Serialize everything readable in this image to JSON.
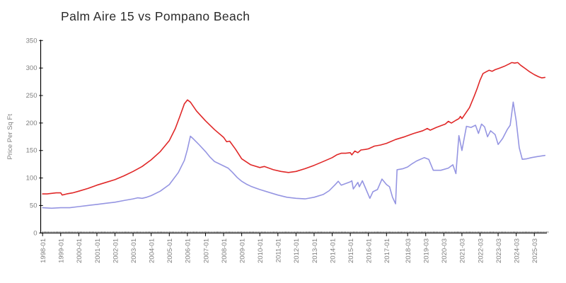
{
  "header": {
    "title": "Palm Aire 15 vs Pompano Beach"
  },
  "chart_data": {
    "type": "line",
    "title": "Palm Aire 15 vs Pompano Beach",
    "xlabel": "",
    "ylabel": "Price Per Sq Ft",
    "ylim": [
      0,
      350
    ],
    "y_ticks": [
      0,
      50,
      100,
      150,
      200,
      250,
      300,
      350
    ],
    "grid": false,
    "legend": "none",
    "x_unit": "month_index (0 = 1998-01, monthly steps)",
    "x_range_months": [
      0,
      335
    ],
    "x_tick_labels": [
      {
        "label": "1998-01",
        "m": 0
      },
      {
        "label": "1999-01",
        "m": 12
      },
      {
        "label": "2000-01",
        "m": 24
      },
      {
        "label": "2001-01",
        "m": 36
      },
      {
        "label": "2002-01",
        "m": 48
      },
      {
        "label": "2003-01",
        "m": 60
      },
      {
        "label": "2004-01",
        "m": 72
      },
      {
        "label": "2005-01",
        "m": 84
      },
      {
        "label": "2006-01",
        "m": 96
      },
      {
        "label": "2007-01",
        "m": 108
      },
      {
        "label": "2008-01",
        "m": 120
      },
      {
        "label": "2009-01",
        "m": 132
      },
      {
        "label": "2010-01",
        "m": 144
      },
      {
        "label": "2011-01",
        "m": 156
      },
      {
        "label": "2012-01",
        "m": 168
      },
      {
        "label": "2013-01",
        "m": 180
      },
      {
        "label": "2014-01",
        "m": 192
      },
      {
        "label": "2015-01",
        "m": 204
      },
      {
        "label": "2016-01",
        "m": 216
      },
      {
        "label": "2017-01",
        "m": 228
      },
      {
        "label": "2018-03",
        "m": 242
      },
      {
        "label": "2019-03",
        "m": 254
      },
      {
        "label": "2020-03",
        "m": 266
      },
      {
        "label": "2021-03",
        "m": 278
      },
      {
        "label": "2022-03",
        "m": 290
      },
      {
        "label": "2023-03",
        "m": 302
      },
      {
        "label": "2024-03",
        "m": 314
      },
      {
        "label": "2025-03",
        "m": 326
      }
    ],
    "series": [
      {
        "name": "red-series",
        "color": "#e02828",
        "points": [
          [
            0,
            71
          ],
          [
            3,
            71
          ],
          [
            6,
            72
          ],
          [
            9,
            73
          ],
          [
            12,
            73
          ],
          [
            13,
            69
          ],
          [
            16,
            71
          ],
          [
            20,
            73
          ],
          [
            24,
            76
          ],
          [
            30,
            81
          ],
          [
            36,
            87
          ],
          [
            42,
            92
          ],
          [
            48,
            97
          ],
          [
            54,
            104
          ],
          [
            60,
            112
          ],
          [
            66,
            121
          ],
          [
            72,
            133
          ],
          [
            78,
            148
          ],
          [
            84,
            168
          ],
          [
            88,
            190
          ],
          [
            91,
            212
          ],
          [
            94,
            235
          ],
          [
            96,
            242
          ],
          [
            98,
            238
          ],
          [
            102,
            222
          ],
          [
            108,
            204
          ],
          [
            114,
            188
          ],
          [
            120,
            174
          ],
          [
            122,
            166
          ],
          [
            124,
            167
          ],
          [
            128,
            152
          ],
          [
            132,
            135
          ],
          [
            138,
            124
          ],
          [
            144,
            119
          ],
          [
            147,
            121
          ],
          [
            153,
            115
          ],
          [
            158,
            112
          ],
          [
            163,
            110
          ],
          [
            168,
            112
          ],
          [
            174,
            117
          ],
          [
            180,
            123
          ],
          [
            186,
            130
          ],
          [
            192,
            137
          ],
          [
            195,
            142
          ],
          [
            198,
            145
          ],
          [
            201,
            145
          ],
          [
            204,
            146
          ],
          [
            205,
            142
          ],
          [
            207,
            149
          ],
          [
            209,
            146
          ],
          [
            211,
            151
          ],
          [
            214,
            152
          ],
          [
            216,
            153
          ],
          [
            220,
            158
          ],
          [
            224,
            160
          ],
          [
            228,
            163
          ],
          [
            234,
            170
          ],
          [
            240,
            175
          ],
          [
            246,
            181
          ],
          [
            252,
            186
          ],
          [
            255,
            190
          ],
          [
            257,
            187
          ],
          [
            261,
            192
          ],
          [
            264,
            195
          ],
          [
            267,
            198
          ],
          [
            269,
            203
          ],
          [
            271,
            200
          ],
          [
            274,
            205
          ],
          [
            276,
            208
          ],
          [
            277,
            212
          ],
          [
            278,
            208
          ],
          [
            280,
            216
          ],
          [
            283,
            228
          ],
          [
            286,
            248
          ],
          [
            288,
            262
          ],
          [
            290,
            278
          ],
          [
            292,
            290
          ],
          [
            294,
            293
          ],
          [
            296,
            296
          ],
          [
            298,
            294
          ],
          [
            300,
            297
          ],
          [
            303,
            300
          ],
          [
            306,
            303
          ],
          [
            309,
            307
          ],
          [
            311,
            310
          ],
          [
            313,
            309
          ],
          [
            315,
            310
          ],
          [
            317,
            305
          ],
          [
            320,
            299
          ],
          [
            323,
            293
          ],
          [
            326,
            288
          ],
          [
            329,
            284
          ],
          [
            331,
            282
          ],
          [
            333,
            283
          ]
        ]
      },
      {
        "name": "blue-series",
        "color": "#9595e2",
        "points": [
          [
            0,
            46
          ],
          [
            6,
            45
          ],
          [
            12,
            46
          ],
          [
            18,
            46
          ],
          [
            24,
            48
          ],
          [
            30,
            50
          ],
          [
            36,
            52
          ],
          [
            42,
            54
          ],
          [
            48,
            56
          ],
          [
            54,
            59
          ],
          [
            60,
            62
          ],
          [
            63,
            64
          ],
          [
            66,
            63
          ],
          [
            69,
            65
          ],
          [
            72,
            68
          ],
          [
            78,
            76
          ],
          [
            84,
            88
          ],
          [
            90,
            110
          ],
          [
            94,
            132
          ],
          [
            96,
            152
          ],
          [
            98,
            176
          ],
          [
            100,
            171
          ],
          [
            104,
            160
          ],
          [
            108,
            148
          ],
          [
            111,
            138
          ],
          [
            114,
            130
          ],
          [
            117,
            126
          ],
          [
            120,
            122
          ],
          [
            123,
            118
          ],
          [
            126,
            110
          ],
          [
            129,
            101
          ],
          [
            132,
            94
          ],
          [
            135,
            89
          ],
          [
            138,
            85
          ],
          [
            141,
            82
          ],
          [
            144,
            79
          ],
          [
            150,
            74
          ],
          [
            156,
            69
          ],
          [
            162,
            65
          ],
          [
            168,
            63
          ],
          [
            174,
            62
          ],
          [
            180,
            65
          ],
          [
            186,
            70
          ],
          [
            190,
            77
          ],
          [
            194,
            88
          ],
          [
            196,
            94
          ],
          [
            198,
            87
          ],
          [
            201,
            90
          ],
          [
            204,
            93
          ],
          [
            205,
            95
          ],
          [
            206,
            80
          ],
          [
            209,
            92
          ],
          [
            210,
            84
          ],
          [
            212,
            95
          ],
          [
            217,
            63
          ],
          [
            219,
            75
          ],
          [
            222,
            79
          ],
          [
            225,
            98
          ],
          [
            228,
            88
          ],
          [
            230,
            84
          ],
          [
            232,
            65
          ],
          [
            234,
            53
          ],
          [
            235,
            115
          ],
          [
            239,
            117
          ],
          [
            242,
            120
          ],
          [
            245,
            126
          ],
          [
            248,
            131
          ],
          [
            253,
            137
          ],
          [
            256,
            134
          ],
          [
            259,
            114
          ],
          [
            264,
            114
          ],
          [
            269,
            118
          ],
          [
            272,
            124
          ],
          [
            274,
            108
          ],
          [
            276,
            177
          ],
          [
            278,
            150
          ],
          [
            281,
            194
          ],
          [
            284,
            192
          ],
          [
            287,
            196
          ],
          [
            289,
            181
          ],
          [
            291,
            198
          ],
          [
            293,
            193
          ],
          [
            295,
            175
          ],
          [
            297,
            186
          ],
          [
            300,
            179
          ],
          [
            302,
            161
          ],
          [
            305,
            172
          ],
          [
            308,
            188
          ],
          [
            310,
            196
          ],
          [
            312,
            238
          ],
          [
            314,
            204
          ],
          [
            316,
            155
          ],
          [
            318,
            134
          ],
          [
            321,
            135
          ],
          [
            324,
            137
          ],
          [
            328,
            139
          ],
          [
            333,
            141
          ]
        ]
      }
    ]
  },
  "colors": {
    "axis": "#000000",
    "tick_label": "#7f7f7f",
    "title_text": "#2b2b2b",
    "background": "#ffffff"
  }
}
